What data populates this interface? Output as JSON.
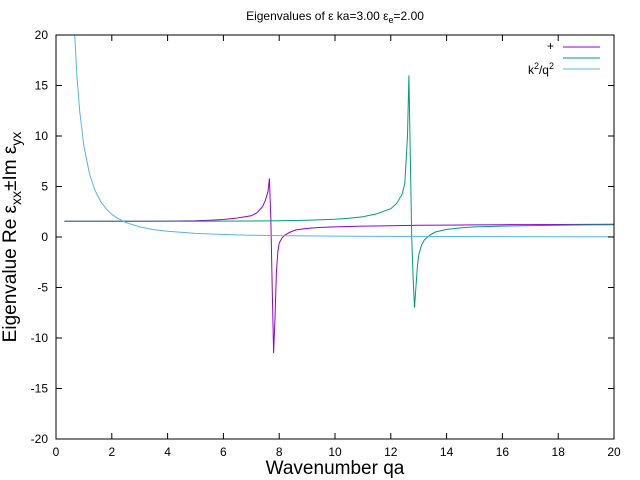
{
  "chart_data": {
    "type": "line",
    "title": "Eigenvalues of ε ka=3.00 εe=2.00",
    "title_parts": {
      "main": "Eigenvalues of ε ka=3.00 ε",
      "sub": "e",
      "tail": "=2.00"
    },
    "xlabel": "Wavenumber qa",
    "ylabel": "Eigenvalue Re εxx±Im εyx",
    "ylabel_parts": {
      "a": "Eigenvalue Re ε",
      "b": "xx",
      "c": "±Im ε",
      "d": "yx"
    },
    "xlim": [
      0,
      20
    ],
    "ylim": [
      -20,
      20
    ],
    "x_ticks": [
      0,
      2,
      4,
      6,
      8,
      10,
      12,
      14,
      16,
      18,
      20
    ],
    "y_ticks": [
      -20,
      -15,
      -10,
      -5,
      0,
      5,
      10,
      15,
      20
    ],
    "grid": false,
    "legend_position": "top-right",
    "series": [
      {
        "name": "+",
        "color": "#9400d3",
        "x": [
          0.3,
          1,
          2,
          3,
          4,
          5,
          5.5,
          6,
          6.5,
          7,
          7.2,
          7.4,
          7.5,
          7.6,
          7.65,
          7.7,
          7.75,
          7.8,
          7.85,
          7.9,
          7.95,
          8.0,
          8.1,
          8.2,
          8.4,
          8.6,
          9,
          9.5,
          10,
          11,
          12,
          13,
          14,
          15,
          16,
          17,
          18,
          19,
          20
        ],
        "y": [
          1.55,
          1.55,
          1.55,
          1.56,
          1.57,
          1.6,
          1.65,
          1.73,
          1.88,
          2.1,
          2.4,
          3.0,
          3.6,
          4.5,
          5.8,
          2.0,
          -5.0,
          -11.5,
          -8.0,
          -3.5,
          -1.5,
          -0.6,
          -0.1,
          0.2,
          0.5,
          0.7,
          0.85,
          0.95,
          1.0,
          1.08,
          1.12,
          1.16,
          1.18,
          1.2,
          1.22,
          1.23,
          1.24,
          1.25,
          1.26
        ]
      },
      {
        "name": "",
        "color": "#009e73",
        "x": [
          0.3,
          1,
          2,
          3,
          4,
          5,
          6,
          7,
          8,
          9,
          10,
          10.5,
          11,
          11.5,
          12,
          12.2,
          12.4,
          12.5,
          12.6,
          12.65,
          12.7,
          12.75,
          12.8,
          12.85,
          12.9,
          12.95,
          13.0,
          13.1,
          13.2,
          13.4,
          13.6,
          14,
          14.5,
          15,
          16,
          17,
          18,
          19,
          20
        ],
        "y": [
          1.55,
          1.55,
          1.55,
          1.55,
          1.56,
          1.56,
          1.57,
          1.58,
          1.6,
          1.65,
          1.75,
          1.85,
          2.0,
          2.3,
          2.8,
          3.3,
          4.2,
          5.3,
          10.0,
          16.0,
          8.0,
          0.0,
          -4.0,
          -7.0,
          -5.0,
          -3.0,
          -1.8,
          -0.8,
          -0.3,
          0.2,
          0.5,
          0.75,
          0.9,
          1.0,
          1.08,
          1.13,
          1.17,
          1.2,
          1.22
        ]
      },
      {
        "name": "k²/q²",
        "color": "#56b4e9",
        "x": [
          0.67,
          0.75,
          0.85,
          1.0,
          1.2,
          1.4,
          1.6,
          1.8,
          2.0,
          2.2,
          2.5,
          3.0,
          3.5,
          4.0,
          5,
          6,
          7,
          8,
          10,
          12,
          14,
          16,
          18,
          20
        ],
        "y": [
          20.0,
          16.0,
          12.46,
          9.0,
          6.25,
          4.59,
          3.52,
          2.78,
          2.25,
          1.86,
          1.44,
          1.0,
          0.73,
          0.56,
          0.36,
          0.25,
          0.18,
          0.14,
          0.09,
          0.06,
          0.05,
          0.04,
          0.03,
          0.02
        ]
      }
    ],
    "legend": [
      {
        "label": "+",
        "color": "#9400d3"
      },
      {
        "label": "",
        "color": "#009e73"
      },
      {
        "label_base": "k",
        "label_sup1": "2",
        "label_mid": "/q",
        "label_sup2": "2",
        "color": "#56b4e9"
      }
    ]
  }
}
